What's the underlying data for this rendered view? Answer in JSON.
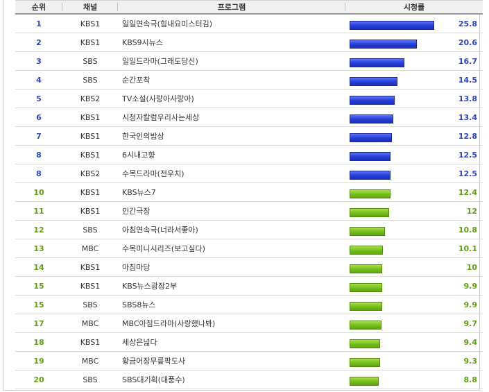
{
  "header": {
    "rank": "순위",
    "channel": "채널",
    "program": "프로그램",
    "rating": "시청률"
  },
  "colors": {
    "top_bar": "#2a3fd6",
    "rest_bar": "#79c01e",
    "top_text": "#2c45c8",
    "rest_text": "#5da10e"
  },
  "rows": [
    {
      "rank": "1",
      "channel": "KBS1",
      "program": "일일연속극(힘내요미스터김)",
      "rating": 25.8,
      "rating_text": "25.8",
      "tier": "blue"
    },
    {
      "rank": "2",
      "channel": "KBS1",
      "program": "KBS9시뉴스",
      "rating": 20.6,
      "rating_text": "20.6",
      "tier": "blue"
    },
    {
      "rank": "3",
      "channel": "SBS",
      "program": "일일드라마(그래도당신)",
      "rating": 16.7,
      "rating_text": "16.7",
      "tier": "blue"
    },
    {
      "rank": "4",
      "channel": "SBS",
      "program": "순간포착",
      "rating": 14.5,
      "rating_text": "14.5",
      "tier": "blue"
    },
    {
      "rank": "5",
      "channel": "KBS2",
      "program": "TV소설(사랑아사랑아)",
      "rating": 13.8,
      "rating_text": "13.8",
      "tier": "blue"
    },
    {
      "rank": "6",
      "channel": "KBS1",
      "program": "시청자칼럼우리사는세상",
      "rating": 13.4,
      "rating_text": "13.4",
      "tier": "blue"
    },
    {
      "rank": "7",
      "channel": "KBS1",
      "program": "한국인의밥상",
      "rating": 12.8,
      "rating_text": "12.8",
      "tier": "blue"
    },
    {
      "rank": "8",
      "channel": "KBS1",
      "program": "6시내고향",
      "rating": 12.5,
      "rating_text": "12.5",
      "tier": "blue"
    },
    {
      "rank": "8",
      "channel": "KBS2",
      "program": "수목드라마(전우치)",
      "rating": 12.5,
      "rating_text": "12.5",
      "tier": "blue"
    },
    {
      "rank": "10",
      "channel": "KBS1",
      "program": "KBS뉴스7",
      "rating": 12.4,
      "rating_text": "12.4",
      "tier": "green"
    },
    {
      "rank": "11",
      "channel": "KBS1",
      "program": "인간극장",
      "rating": 12,
      "rating_text": "12",
      "tier": "green"
    },
    {
      "rank": "12",
      "channel": "SBS",
      "program": "아침연속극(너라서좋아)",
      "rating": 10.8,
      "rating_text": "10.8",
      "tier": "green"
    },
    {
      "rank": "13",
      "channel": "MBC",
      "program": "수목미니시리즈(보고싶다)",
      "rating": 10.1,
      "rating_text": "10.1",
      "tier": "green"
    },
    {
      "rank": "14",
      "channel": "KBS1",
      "program": "아침마당",
      "rating": 10,
      "rating_text": "10",
      "tier": "green"
    },
    {
      "rank": "15",
      "channel": "KBS1",
      "program": "KBS뉴스광장2부",
      "rating": 9.9,
      "rating_text": "9.9",
      "tier": "green"
    },
    {
      "rank": "15",
      "channel": "SBS",
      "program": "SBS8뉴스",
      "rating": 9.9,
      "rating_text": "9.9",
      "tier": "green"
    },
    {
      "rank": "17",
      "channel": "MBC",
      "program": "MBC아침드라마(사랑했나봐)",
      "rating": 9.7,
      "rating_text": "9.7",
      "tier": "green"
    },
    {
      "rank": "18",
      "channel": "KBS1",
      "program": "세상은넓다",
      "rating": 9.4,
      "rating_text": "9.4",
      "tier": "green"
    },
    {
      "rank": "19",
      "channel": "MBC",
      "program": "황금어장무릎팍도사",
      "rating": 9.3,
      "rating_text": "9.3",
      "tier": "green"
    },
    {
      "rank": "20",
      "channel": "SBS",
      "program": "SBS대기획(대풍수)",
      "rating": 8.8,
      "rating_text": "8.8",
      "tier": "green"
    }
  ]
}
